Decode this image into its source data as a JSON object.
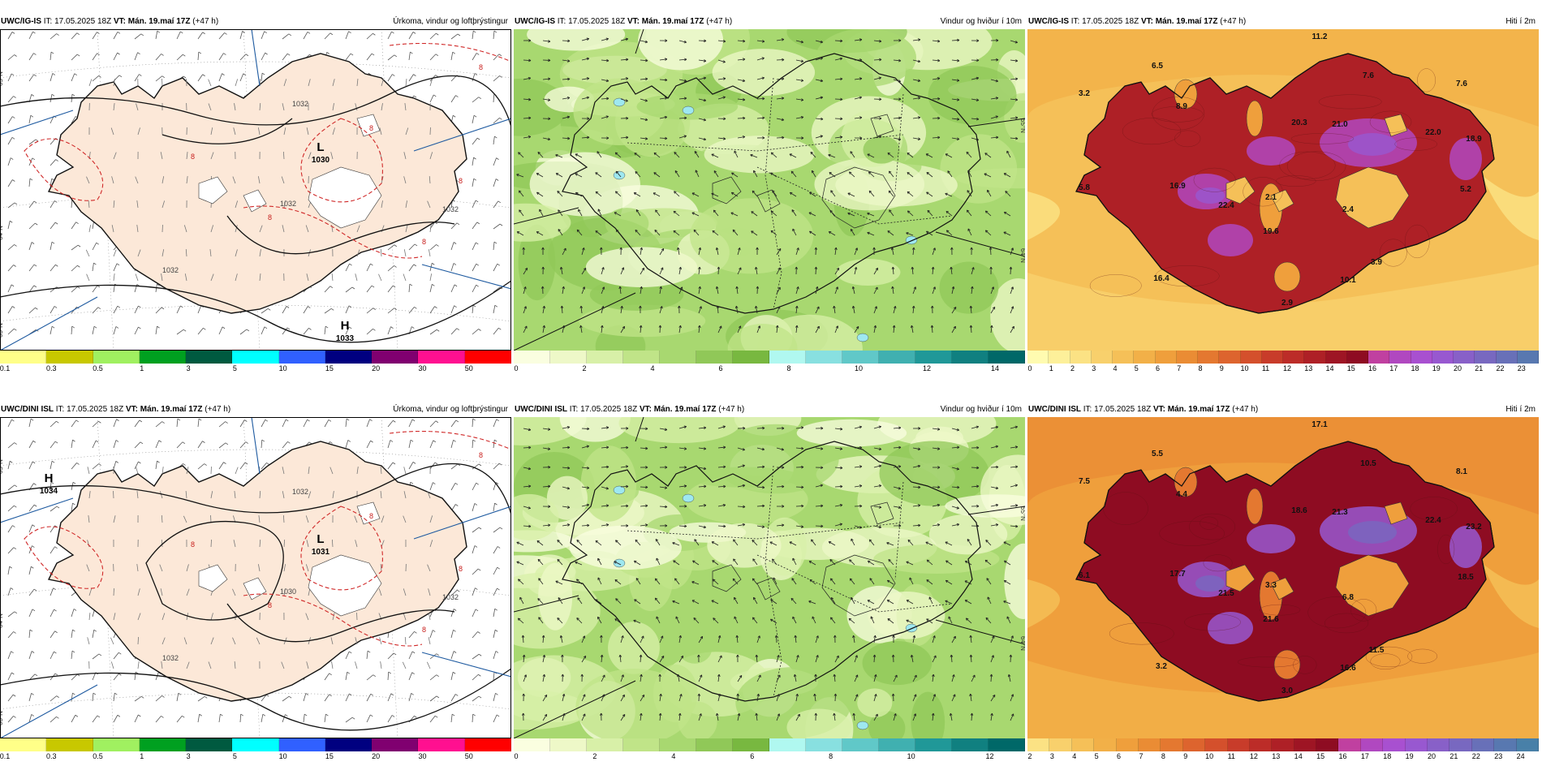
{
  "panels": [
    {
      "id": "p1",
      "source": "UWC/IG-IS",
      "it": "IT: 17.05.2025 18Z",
      "vt": "VT: Mán. 19.maí 17Z",
      "lead": "(+47 h)",
      "title": "Úrkoma, vindur og loftþrýstingur",
      "type": "precip",
      "lat_labels": [
        "65°N",
        "64°N",
        "63°N"
      ],
      "centers": [
        {
          "letter": "L",
          "value": "1030"
        },
        {
          "letter": "H",
          "value": "1033"
        }
      ],
      "isobar_labels": [
        "1032",
        "1032",
        "1032",
        "1032"
      ],
      "red_labels": [
        "8",
        "8",
        "8",
        "8",
        "8",
        "8"
      ],
      "colors": [
        "#ffff88",
        "#c8c800",
        "#a0f060",
        "#00a020",
        "#005a40",
        "#00ffff",
        "#3060ff",
        "#000080",
        "#800070",
        "#ff1090",
        "#ff0000"
      ],
      "ticks": [
        "0.1",
        "0.3",
        "0.5",
        "1",
        "3",
        "5",
        "10",
        "15",
        "20",
        "30",
        "50"
      ]
    },
    {
      "id": "p2",
      "source": "UWC/IG-IS",
      "it": "IT: 17.05.2025 18Z",
      "vt": "VT: Mán. 19.maí 17Z",
      "lead": "(+47 h)",
      "title": "Vindur og hviður í 10m",
      "type": "wind",
      "lat_labels": [
        "65°N",
        "64°N"
      ],
      "colors": [
        "#fafee0",
        "#eef8c8",
        "#d8f0a8",
        "#c0e488",
        "#a8d870",
        "#90c858",
        "#78b840",
        "#b0f8f0",
        "#88e0e0",
        "#60c8c8",
        "#40b0b0",
        "#209898",
        "#108080",
        "#006868"
      ],
      "ticks": [
        "0",
        "2",
        "4",
        "6",
        "8",
        "10",
        "12",
        "14"
      ]
    },
    {
      "id": "p3",
      "source": "UWC/IG-IS",
      "it": "IT: 17.05.2025 18Z",
      "vt": "VT: Mán. 19.maí 17Z",
      "lead": "(+47 h)",
      "title": "Hiti í 2m",
      "type": "temp",
      "values": [
        "11.2",
        "6.5",
        "7.6",
        "7.6",
        "3.2",
        "8.9",
        "20.3",
        "21.0",
        "22.0",
        "18.9",
        "5.8",
        "16.9",
        "22.4",
        "2.1",
        "2.4",
        "5.2",
        "19.6",
        "3.9",
        "16.4",
        "10.1",
        "2.9"
      ],
      "colors": [
        "#fffbb0",
        "#fdf09a",
        "#fbe284",
        "#f8d06c",
        "#f5c058",
        "#f2b048",
        "#ef9f3c",
        "#ea8c34",
        "#e47830",
        "#dd642e",
        "#d4502c",
        "#c83c2a",
        "#bc2c28",
        "#ae2026",
        "#9e1524",
        "#8e0c22",
        "#c040a0",
        "#b048c0",
        "#a850d0",
        "#9858d0",
        "#8860c8",
        "#7868c0",
        "#6870b8",
        "#5878b0"
      ],
      "ticks": [
        "0",
        "1",
        "2",
        "3",
        "4",
        "5",
        "6",
        "7",
        "8",
        "9",
        "10",
        "11",
        "12",
        "13",
        "14",
        "15",
        "16",
        "17",
        "18",
        "19",
        "20",
        "21",
        "22",
        "23"
      ]
    },
    {
      "id": "p4",
      "source": "UWC/DINI ISL",
      "it": "IT: 17.05.2025 18Z",
      "vt": "VT: Mán. 19.maí 17Z",
      "lead": "(+47 h)",
      "title": "Úrkoma, vindur og loftþrýstingur",
      "type": "precip",
      "lat_labels": [
        "65°N",
        "64°N",
        "63°N"
      ],
      "centers": [
        {
          "letter": "H",
          "value": "1034"
        },
        {
          "letter": "L",
          "value": "1031"
        }
      ],
      "isobar_labels": [
        "1032",
        "1030",
        "1032",
        "1032"
      ],
      "red_labels": [
        "8",
        "8",
        "8",
        "8",
        "8",
        "8"
      ],
      "colors": [
        "#ffff88",
        "#c8c800",
        "#a0f060",
        "#00a020",
        "#005a40",
        "#00ffff",
        "#3060ff",
        "#000080",
        "#800070",
        "#ff1090",
        "#ff0000"
      ],
      "ticks": [
        "0.1",
        "0.3",
        "0.5",
        "1",
        "3",
        "5",
        "10",
        "15",
        "20",
        "30",
        "50"
      ]
    },
    {
      "id": "p5",
      "source": "UWC/DINI ISL",
      "it": "IT: 17.05.2025 18Z",
      "vt": "VT: Mán. 19.maí 17Z",
      "lead": "(+47 h)",
      "title": "Vindur og hviður í 10m",
      "type": "wind",
      "lat_labels": [
        "65°N",
        "64°N"
      ],
      "colors": [
        "#fafee0",
        "#eef8c8",
        "#d8f0a8",
        "#c0e488",
        "#a8d870",
        "#90c858",
        "#78b840",
        "#b0f8f0",
        "#88e0e0",
        "#60c8c8",
        "#40b0b0",
        "#209898",
        "#108080",
        "#006868"
      ],
      "ticks": [
        "0",
        "2",
        "4",
        "6",
        "8",
        "10",
        "12"
      ]
    },
    {
      "id": "p6",
      "source": "UWC/DINI ISL",
      "it": "IT: 17.05.2025 18Z",
      "vt": "VT: Mán. 19.maí 17Z",
      "lead": "(+47 h)",
      "title": "Hiti í 2m",
      "type": "temp",
      "values": [
        "17.1",
        "5.5",
        "10.5",
        "8.1",
        "7.5",
        "4.4",
        "18.6",
        "21.3",
        "22.4",
        "23.2",
        "6.1",
        "17.7",
        "21.5",
        "3.3",
        "6.8",
        "18.5",
        "21.6",
        "11.5",
        "3.2",
        "16.6",
        "3.0"
      ],
      "colors": [
        "#fbe284",
        "#f8d06c",
        "#f5c058",
        "#f2b048",
        "#ef9f3c",
        "#ea8c34",
        "#e47830",
        "#dd642e",
        "#d4502c",
        "#c83c2a",
        "#bc2c28",
        "#ae2026",
        "#9e1524",
        "#8e0c22",
        "#c040a0",
        "#b048c0",
        "#a850d0",
        "#9858d0",
        "#8860c8",
        "#7868c0",
        "#6870b8",
        "#5878b0",
        "#4880a8"
      ],
      "ticks": [
        "2",
        "3",
        "4",
        "5",
        "6",
        "7",
        "8",
        "9",
        "10",
        "11",
        "12",
        "13",
        "14",
        "15",
        "16",
        "17",
        "18",
        "19",
        "20",
        "21",
        "22",
        "23",
        "24"
      ]
    }
  ]
}
